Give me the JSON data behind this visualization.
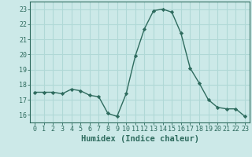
{
  "x": [
    0,
    1,
    2,
    3,
    4,
    5,
    6,
    7,
    8,
    9,
    10,
    11,
    12,
    13,
    14,
    15,
    16,
    17,
    18,
    19,
    20,
    21,
    22,
    23
  ],
  "y": [
    17.5,
    17.5,
    17.5,
    17.4,
    17.7,
    17.6,
    17.3,
    17.2,
    16.1,
    15.9,
    17.4,
    19.9,
    21.7,
    22.9,
    23.0,
    22.8,
    21.4,
    19.1,
    18.1,
    17.0,
    16.5,
    16.4,
    16.4,
    15.9
  ],
  "line_color": "#2e6b5e",
  "marker": "D",
  "marker_size": 2.2,
  "xlabel": "Humidex (Indice chaleur)",
  "xlim": [
    -0.5,
    23.5
  ],
  "ylim": [
    15.5,
    23.5
  ],
  "yticks": [
    16,
    17,
    18,
    19,
    20,
    21,
    22,
    23
  ],
  "xticks": [
    0,
    1,
    2,
    3,
    4,
    5,
    6,
    7,
    8,
    9,
    10,
    11,
    12,
    13,
    14,
    15,
    16,
    17,
    18,
    19,
    20,
    21,
    22,
    23
  ],
  "bg_color": "#cce9e8",
  "grid_color": "#b0d8d6",
  "axes_color": "#2e6b5e",
  "tick_label_fontsize": 6.0,
  "xlabel_fontsize": 7.5
}
